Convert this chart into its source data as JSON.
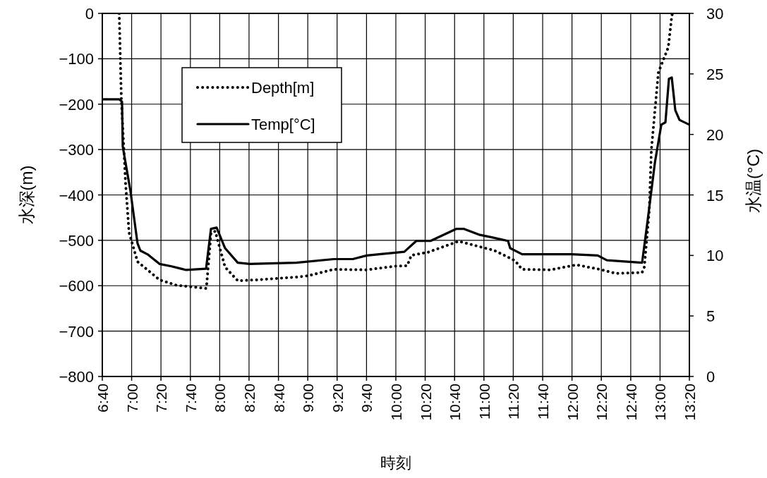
{
  "chart_data": {
    "type": "line",
    "xlabel": "時刻",
    "ylabel": "水深(m)",
    "y2label": "水温(°C)",
    "xlim": [
      6.667,
      13.333
    ],
    "xticks": [
      {
        "value": 6.667,
        "label": "6:40"
      },
      {
        "value": 7,
        "label": "7:00"
      },
      {
        "value": 7.333,
        "label": "7:20"
      },
      {
        "value": 7.667,
        "label": "7:40"
      },
      {
        "value": 8,
        "label": "8:00"
      },
      {
        "value": 8.333,
        "label": "8:20"
      },
      {
        "value": 8.667,
        "label": "8:40"
      },
      {
        "value": 9,
        "label": "9:00"
      },
      {
        "value": 9.333,
        "label": "9:20"
      },
      {
        "value": 9.667,
        "label": "9:40"
      },
      {
        "value": 10,
        "label": "10:00"
      },
      {
        "value": 10.333,
        "label": "10:20"
      },
      {
        "value": 10.667,
        "label": "10:40"
      },
      {
        "value": 11,
        "label": "11:00"
      },
      {
        "value": 11.333,
        "label": "11:20"
      },
      {
        "value": 11.667,
        "label": "11:40"
      },
      {
        "value": 12,
        "label": "12:00"
      },
      {
        "value": 12.333,
        "label": "12:20"
      },
      {
        "value": 12.667,
        "label": "12:40"
      },
      {
        "value": 13,
        "label": "13:00"
      },
      {
        "value": 13.333,
        "label": "13:20"
      }
    ],
    "ylim": [
      -800,
      0
    ],
    "yticks": [
      -800,
      -700,
      -600,
      -500,
      -400,
      -300,
      -200,
      -100,
      0
    ],
    "y2lim": [
      0,
      30
    ],
    "y2ticks": [
      0,
      5,
      10,
      15,
      20,
      25,
      30
    ],
    "grid": true,
    "legend": "top left",
    "series": [
      {
        "name": "Depth[m]",
        "color": "#000000",
        "line_style": "dotted",
        "x": [
          6.859,
          6.883,
          6.931,
          6.971,
          7.067,
          7.316,
          7.508,
          7.845,
          7.853,
          7.901,
          7.949,
          8.061,
          8.205,
          8.421,
          8.87,
          9.006,
          9.295,
          9.671,
          9.992,
          10.128,
          10.176,
          10.369,
          10.713,
          10.793,
          11.01,
          11.114,
          11.274,
          11.354,
          11.434,
          11.755,
          12.051,
          12.316,
          12.5,
          12.796,
          12.821,
          12.877,
          12.901,
          12.981,
          13.093,
          13.133,
          13.141
        ],
        "values": [
          0,
          -188,
          -374,
          -483,
          -547,
          -587,
          -599,
          -606,
          -595,
          -484,
          -480,
          -559,
          -589,
          -587,
          -581,
          -578,
          -564,
          -565,
          -557,
          -556,
          -533,
          -526,
          -502,
          -506,
          -517,
          -522,
          -537,
          -545,
          -564,
          -565,
          -554,
          -564,
          -573,
          -571,
          -559,
          -436,
          -301,
          -130,
          -75,
          -6,
          0
        ]
      },
      {
        "name": "Temp[°C]",
        "color": "#000000",
        "line_style": "solid",
        "axis": "y2",
        "x": [
          6.667,
          6.859,
          6.891,
          6.899,
          6.987,
          7.067,
          7.099,
          7.179,
          7.316,
          7.452,
          7.62,
          7.845,
          7.901,
          7.965,
          8.061,
          8.205,
          8.341,
          8.87,
          9.295,
          9.511,
          9.671,
          10.096,
          10.232,
          10.393,
          10.689,
          10.769,
          10.954,
          11.09,
          11.274,
          11.298,
          11.434,
          11.995,
          12.292,
          12.396,
          12.796,
          12.861,
          12.942,
          13.014,
          13.061,
          13.101,
          13.133,
          13.173,
          13.221,
          13.333
        ],
        "values": [
          22.9,
          22.9,
          22.7,
          19.0,
          15.3,
          11.0,
          10.4,
          10.1,
          9.3,
          9.1,
          8.8,
          8.9,
          12.2,
          12.3,
          10.6,
          9.4,
          9.3,
          9.4,
          9.7,
          9.7,
          10.0,
          10.3,
          11.2,
          11.2,
          12.2,
          12.2,
          11.7,
          11.5,
          11.2,
          10.6,
          10.1,
          10.1,
          10.0,
          9.6,
          9.4,
          13.0,
          17.7,
          20.8,
          21.0,
          24.6,
          24.7,
          22.0,
          21.2,
          20.8
        ]
      }
    ]
  }
}
